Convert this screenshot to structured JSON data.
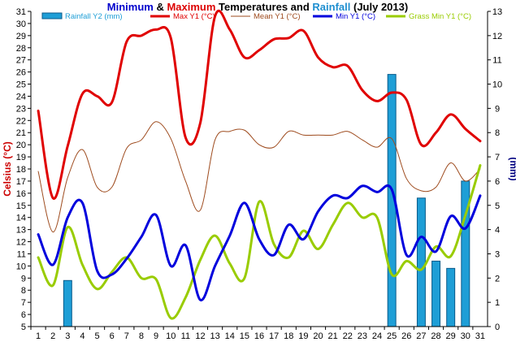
{
  "chart_data": {
    "type": "line",
    "title_parts": [
      {
        "text": "Minimum",
        "color": "#0000cc"
      },
      {
        "text": " & ",
        "color": "#000000"
      },
      {
        "text": "Maximum",
        "color": "#dd0000"
      },
      {
        "text": " Temperatures and ",
        "color": "#000000"
      },
      {
        "text": "Rainfall",
        "color": "#1f8fd0"
      },
      {
        "text": " (July 2013)",
        "color": "#000000"
      }
    ],
    "ylabel_left": "Celsius (°C)",
    "ylabel_right": "(mm)",
    "ylim_left": [
      5,
      31
    ],
    "ylim_right": [
      0,
      13
    ],
    "yticks_left": [
      "5",
      "6",
      "7",
      "8",
      "9",
      "10",
      "11",
      "12",
      "13",
      "14",
      "15",
      "16",
      "17",
      "18",
      "19",
      "20",
      "21",
      "22",
      "23",
      "24",
      "25",
      "26",
      "27",
      "28",
      "29",
      "30",
      "31"
    ],
    "yticks_right": [
      "0",
      "1",
      "2",
      "3",
      "4",
      "5",
      "6",
      "7",
      "8",
      "9",
      "10",
      "11",
      "12",
      "13"
    ],
    "x": [
      "1",
      "2",
      "3",
      "4",
      "5",
      "6",
      "7",
      "8",
      "9",
      "10",
      "11",
      "12",
      "13",
      "14",
      "15",
      "16",
      "17",
      "18",
      "19",
      "20",
      "21",
      "22",
      "23",
      "24",
      "25",
      "26",
      "27",
      "28",
      "29",
      "30",
      "31"
    ],
    "legend_placement": "top",
    "grid": false,
    "series": [
      {
        "name": "Rainfall Y2 (mm)",
        "kind": "bar",
        "axis": "right",
        "color": "#1e9ed6",
        "values": [
          0,
          0,
          1.9,
          0,
          0,
          0,
          0,
          0,
          0,
          0,
          0,
          0,
          0,
          0,
          0,
          0,
          0,
          0,
          0,
          0,
          0,
          0,
          0,
          0,
          10.4,
          0,
          5.3,
          2.7,
          2.4,
          6,
          0
        ]
      },
      {
        "name": "Max Y1 (°C)",
        "kind": "line",
        "axis": "left",
        "color": "#e00000",
        "width": 3,
        "values": [
          22.8,
          15.6,
          19.9,
          24.2,
          24,
          23.5,
          28.5,
          29,
          29.5,
          28.8,
          20.6,
          21.8,
          30.6,
          29.5,
          27.2,
          27.8,
          28.7,
          28.8,
          29.4,
          27.2,
          26.4,
          26.5,
          24.5,
          23.6,
          24.3,
          23.7,
          20,
          21,
          22.5,
          21.3,
          20.3
        ]
      },
      {
        "name": "Mean Y1 (°C)",
        "kind": "line",
        "axis": "left",
        "color": "#9e4b1e",
        "width": 1,
        "values": [
          17.8,
          12.8,
          17.3,
          19.6,
          16.5,
          16.5,
          19.7,
          20.4,
          21.9,
          20.5,
          17,
          14.6,
          20.4,
          21.1,
          21.2,
          20,
          19.8,
          21.1,
          20.8,
          20.8,
          20.8,
          21.1,
          20.4,
          19.8,
          20.5,
          17.2,
          16.2,
          16.5,
          18.5,
          17,
          18
        ]
      },
      {
        "name": "Min Y1 (°C)",
        "kind": "line",
        "axis": "left",
        "color": "#0000dd",
        "width": 3,
        "values": [
          12.6,
          10.1,
          14,
          15.2,
          9.6,
          9.3,
          10.6,
          12.4,
          14.2,
          10,
          11.7,
          7.2,
          10,
          12.5,
          15.2,
          12.2,
          10.9,
          13.4,
          12.2,
          14.5,
          15.8,
          15.6,
          16.6,
          16.1,
          16.3,
          10.9,
          12.4,
          11.2,
          14.1,
          13.1,
          15.8
        ]
      },
      {
        "name": "Grass Min Y1 (°C)",
        "kind": "line",
        "axis": "left",
        "color": "#99cc00",
        "width": 3,
        "values": [
          10.7,
          8.4,
          13.2,
          10.1,
          8.1,
          9.5,
          10.7,
          9,
          8.9,
          5.7,
          7.4,
          10.5,
          12.5,
          10.2,
          9,
          15.3,
          11.8,
          10.7,
          12.9,
          11.4,
          13.4,
          15.2,
          14,
          14,
          9.3,
          10.4,
          9.7,
          11.6,
          10.8,
          14.2,
          18.3
        ]
      }
    ]
  }
}
